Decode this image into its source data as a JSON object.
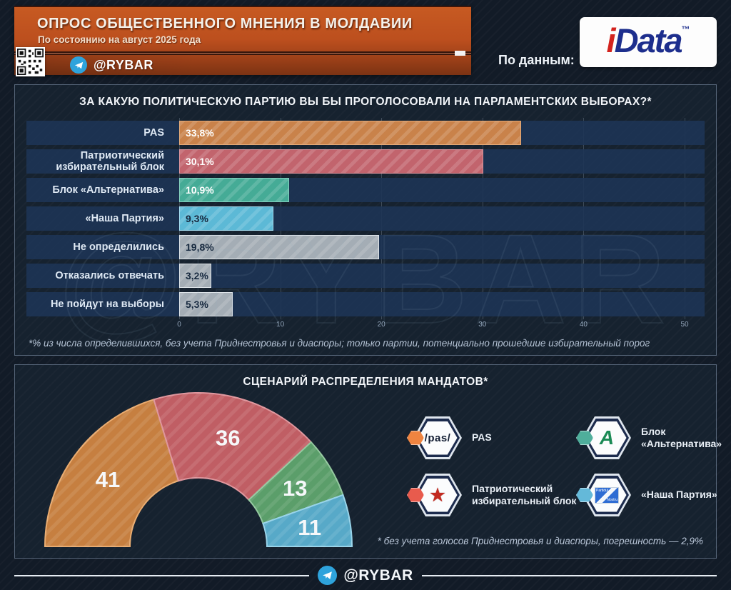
{
  "header": {
    "title": "ОПРОС ОБЩЕСТВЕННОГО МНЕНИЯ В МОЛДАВИИ",
    "subtitle": "По состоянию на август 2025 года",
    "telegram_handle": "@RYBAR",
    "source_label": "По данным:",
    "source_logo": {
      "prefix": "i",
      "name": "Data",
      "tm": "™"
    }
  },
  "watermark": "@RYBAR",
  "chart_data": [
    {
      "type": "bar",
      "orientation": "horizontal",
      "title": "ЗА КАКУЮ ПОЛИТИЧЕСКУЮ ПАРТИЮ ВЫ БЫ ПРОГОЛОСОВАЛИ НА ПАРЛАМЕНТСКИХ ВЫБОРАХ?*",
      "categories": [
        "PAS",
        "Патриотический избирательный блок",
        "Блок «Альтернатива»",
        "«Наша Партия»",
        "Не определились",
        "Отказались отвечать",
        "Не пойдут на выборы"
      ],
      "values": [
        33.8,
        30.1,
        10.9,
        9.3,
        19.8,
        3.2,
        5.3
      ],
      "value_labels": [
        "33,8%",
        "30,1%",
        "10,9%",
        "9,3%",
        "19,8%",
        "3,2%",
        "5,3%"
      ],
      "colors": [
        "#c9824a",
        "#c2646d",
        "#45ab96",
        "#5cb9d6",
        "#a4adb5",
        "#a4adb5",
        "#a4adb5"
      ],
      "border_colors": [
        "#e5ab79",
        "#de949c",
        "#84d2bf",
        "#a5dff2",
        "#dde3e8",
        "#dde3e8",
        "#dde3e8"
      ],
      "value_text_colors": [
        "#ffffff",
        "#ffffff",
        "#ffffff",
        "#17293f",
        "#17293f",
        "#17293f",
        "#17293f"
      ],
      "xlim": [
        0,
        50
      ],
      "x_ticks": [
        0,
        10,
        20,
        30,
        40,
        50
      ],
      "grid": true,
      "footnote": "*% из числа определившихся, без учета Приднестровья и диаспоры; только партии, потенциально прошедшие избирательный порог"
    },
    {
      "type": "pie",
      "shape": "half-donut",
      "title": "СЦЕНАРИЙ РАСПРЕДЕЛЕНИЯ МАНДАТОВ*",
      "categories": [
        "PAS",
        "Патриотический избирательный блок",
        "Блок «Альтернатива»",
        "«Наша Партия»"
      ],
      "values": [
        41,
        36,
        13,
        11
      ],
      "colors": [
        "#c67f40",
        "#c05e64",
        "#5b9e6a",
        "#57a9c8"
      ],
      "border_colors": [
        "#e8ab70",
        "#de959c",
        "#93c89e",
        "#97d3e9"
      ],
      "footnote": "* без учета голосов Приднестровья и диаспоры, погрешность — 2,9%",
      "legend_position": "right",
      "legend": [
        {
          "label": "PAS",
          "logo_text": "/pas/",
          "marker_color": "#ef8440"
        },
        {
          "label": "Блок «Альтернатива»",
          "logo_text": "A",
          "marker_color": "#4fae9b"
        },
        {
          "label": "Патриотический избирательный блок",
          "logo_text": "★",
          "marker_color": "#e85b4d"
        },
        {
          "label": "«Наша Партия»",
          "logo_text": "Partidul Nostru",
          "flag_line1": "Partidul",
          "flag_line2": "Nostru",
          "marker_color": "#64b9d9"
        }
      ]
    }
  ],
  "footer": {
    "telegram_handle": "@RYBAR"
  }
}
